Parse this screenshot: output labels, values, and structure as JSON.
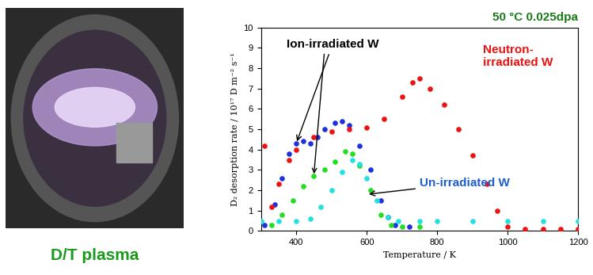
{
  "photo_caption": "D/T plasma",
  "chart_data": {
    "type": "scatter",
    "title": "50 °C 0.025dpa",
    "x_label": "Temperature / K",
    "y_label": "D₂ desorption rate / 10¹⁷ D m⁻² s⁻¹",
    "xlim": [
      300,
      1200
    ],
    "xticks": [
      400,
      600,
      800,
      1000,
      1200
    ],
    "ylim": [
      0,
      10
    ],
    "yticks": [
      0,
      1,
      2,
      3,
      4,
      5,
      6,
      7,
      8,
      9,
      10
    ],
    "marker": "o",
    "series": [
      {
        "color": "#1f2fe0",
        "x": [
          310,
          340,
          360,
          380,
          400,
          420,
          440,
          460,
          480,
          510,
          530,
          550,
          580,
          610,
          640,
          660,
          680,
          720
        ],
        "values": [
          0.3,
          1.3,
          2.6,
          3.8,
          4.3,
          4.4,
          4.3,
          4.6,
          5.0,
          5.3,
          5.4,
          5.2,
          4.2,
          3.0,
          1.5,
          0.7,
          0.3,
          0.2
        ]
      },
      {
        "color": "#22dd22",
        "x": [
          330,
          360,
          390,
          420,
          450,
          480,
          510,
          540,
          560,
          580,
          610,
          640,
          670,
          700,
          750
        ],
        "values": [
          0.3,
          0.8,
          1.5,
          2.2,
          2.7,
          3.0,
          3.4,
          3.9,
          3.8,
          3.2,
          2.0,
          0.8,
          0.3,
          0.2,
          0.2
        ]
      },
      {
        "color": "#ee1111",
        "x": [
          310,
          330,
          350,
          380,
          400,
          450,
          500,
          550,
          600,
          650,
          700,
          730,
          750,
          780,
          820,
          860,
          900,
          940,
          970,
          1000,
          1050,
          1100,
          1150,
          1200
        ],
        "values": [
          4.2,
          1.2,
          2.3,
          3.5,
          4.0,
          4.6,
          4.9,
          5.0,
          5.1,
          5.5,
          6.6,
          7.3,
          7.5,
          7.0,
          6.2,
          5.0,
          3.7,
          2.3,
          1.0,
          0.2,
          0.1,
          0.1,
          0.1,
          0.1
        ]
      },
      {
        "color": "#22e0e0",
        "x": [
          300,
          350,
          400,
          440,
          470,
          500,
          530,
          560,
          580,
          600,
          630,
          660,
          690,
          750,
          800,
          900,
          1000,
          1100,
          1200
        ],
        "values": [
          0.5,
          0.5,
          0.5,
          0.6,
          1.2,
          2.0,
          2.9,
          3.5,
          3.3,
          2.6,
          1.5,
          0.7,
          0.5,
          0.5,
          0.5,
          0.5,
          0.5,
          0.5,
          0.5
        ]
      }
    ],
    "annotations": [
      {
        "text": "Ion-irradiated W",
        "color": "#000000"
      },
      {
        "text": "Neutron-\nirradiated W",
        "color": "#ee1111"
      },
      {
        "text": "Un-irradiated W",
        "color": "#1f5fd0"
      }
    ]
  }
}
